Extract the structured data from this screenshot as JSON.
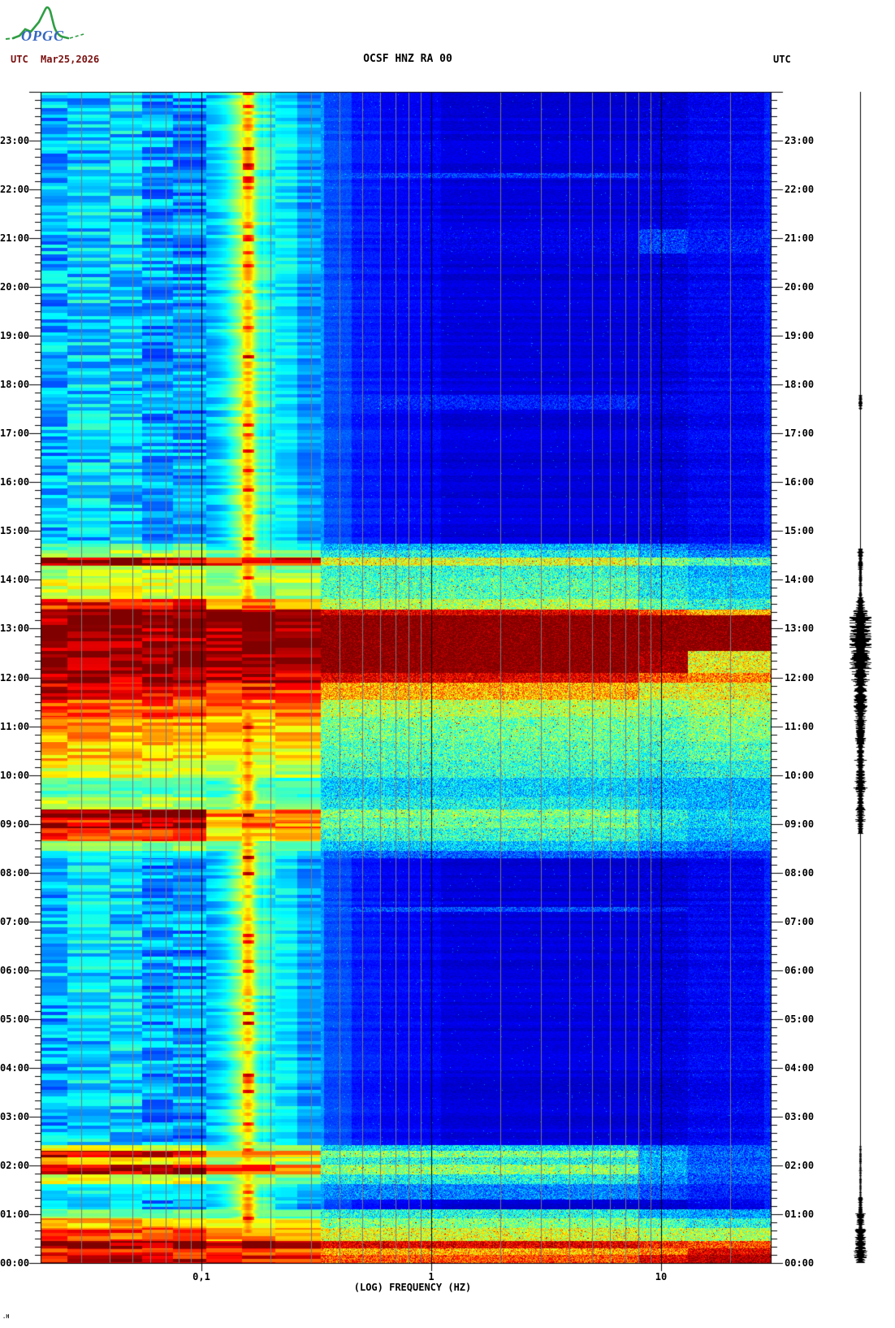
{
  "header": {
    "logo_text": "OPGC",
    "utc_left": "UTC",
    "date": "Mar25,2026",
    "title": "OCSF HNZ RA 00",
    "utc_right": "UTC"
  },
  "footer": {
    "signature": ".H"
  },
  "colors": {
    "header_date": "#7a1010",
    "title": "#000000",
    "grid_minor": "#7a7a7a",
    "grid_major": "#000000",
    "trace": "#000000",
    "logo_green": "#2f9e44",
    "logo_blue": "#3566c0"
  },
  "chart_data": {
    "type": "heatmap",
    "subtype": "seismic-spectrogram",
    "title": "OCSF HNZ RA 00",
    "station": "OCSF",
    "channel": "HNZ RA 00",
    "date": "Mar25,2026",
    "xlabel": "(LOG) FREQUENCY (HZ)",
    "ylabel": "UTC",
    "x_scale": "log",
    "x_min_hz": 0.02,
    "x_max_hz": 30,
    "x_ticks": [
      {
        "hz": 0.1,
        "label": "0,1"
      },
      {
        "hz": 1,
        "label": "1"
      },
      {
        "hz": 10,
        "label": "10"
      }
    ],
    "x_gridlines_minor_hz": [
      0.03,
      0.04,
      0.05,
      0.06,
      0.07,
      0.08,
      0.09,
      0.2,
      0.3,
      0.4,
      0.5,
      0.6,
      0.7,
      0.8,
      0.9,
      2,
      3,
      4,
      5,
      6,
      7,
      8,
      9,
      20,
      30
    ],
    "x_gridlines_major_hz": [
      0.1,
      1,
      10
    ],
    "y_hours_span": 24,
    "y_minor_tick_minutes": 10,
    "hour_labels": [
      "23:00",
      "22:00",
      "21:00",
      "20:00",
      "19:00",
      "18:00",
      "17:00",
      "16:00",
      "15:00",
      "14:00",
      "13:00",
      "12:00",
      "11:00",
      "10:00",
      "09:00",
      "08:00",
      "07:00",
      "06:00",
      "05:00",
      "04:00",
      "03:00",
      "02:00",
      "01:00",
      "00:00"
    ],
    "colormap": "jet",
    "background_level": 0.095,
    "base_profile": [
      {
        "f_lo": 0.02,
        "f_hi": 0.026,
        "v": 0.3
      },
      {
        "f_lo": 0.026,
        "f_hi": 0.055,
        "v": 0.33
      },
      {
        "f_lo": 0.055,
        "f_hi": 0.105,
        "v": 0.28
      },
      {
        "f_lo": 0.105,
        "f_hi": 0.125,
        "v": 0.31
      },
      {
        "f_lo": 0.125,
        "f_hi": 0.185,
        "v": 0.3
      },
      {
        "f_lo": 0.185,
        "f_hi": 0.26,
        "v": 0.36
      },
      {
        "f_lo": 0.26,
        "f_hi": 0.34,
        "v": 0.28
      },
      {
        "f_lo": 0.34,
        "f_hi": 0.45,
        "v": 0.2
      },
      {
        "f_lo": 0.45,
        "f_hi": 0.6,
        "v": 0.15
      },
      {
        "f_lo": 0.6,
        "f_hi": 1.1,
        "v": 0.12
      },
      {
        "f_lo": 1.1,
        "f_hi": 13,
        "v": 0.09
      },
      {
        "f_lo": 13,
        "f_hi": 28,
        "v": 0.115
      },
      {
        "f_lo": 28,
        "f_hi": 30.5,
        "v": 0.16
      }
    ],
    "microseism_band": {
      "center_hz": 0.155,
      "core_hz": 0.16,
      "band_amp": 0.26,
      "core_amp": 0.14,
      "m_by_hour": [
        1.06,
        1.05,
        0.95,
        0.92,
        0.92,
        0.92,
        0.92,
        0.93,
        0.95,
        1.1,
        1.12,
        1.12,
        1.05,
        1.0,
        1.03,
        0.98,
        0.97,
        0.97,
        0.96,
        0.96,
        0.97,
        0.98,
        0.97,
        0.97,
        0.97
      ]
    },
    "events_format": "[hour_start, hour_end, v_below_0.1Hz, v_0.1-0.33Hz, v_0.33-8Hz, v_8-13Hz, v_above_13Hz]",
    "events": [
      [
        22.35,
        22.25,
        0.3,
        0.25,
        0.18,
        0.12,
        0.1
      ],
      [
        21.2,
        20.7,
        0.1,
        0.1,
        0.1,
        0.18,
        0.14
      ],
      [
        17.8,
        17.5,
        0.3,
        0.2,
        0.15,
        0.1,
        0.1
      ],
      [
        14.75,
        14.62,
        0.45,
        0.4,
        0.3,
        0.25,
        0.2
      ],
      [
        14.62,
        14.47,
        0.55,
        0.5,
        0.38,
        0.3,
        0.25
      ],
      [
        14.47,
        14.3,
        0.97,
        0.85,
        0.6,
        0.5,
        0.45
      ],
      [
        14.3,
        14.05,
        0.55,
        0.5,
        0.42,
        0.35,
        0.3
      ],
      [
        14.05,
        13.62,
        0.6,
        0.55,
        0.45,
        0.38,
        0.33
      ],
      [
        13.62,
        13.4,
        0.85,
        0.75,
        0.55,
        0.45,
        0.4
      ],
      [
        13.4,
        13.28,
        1.0,
        1.0,
        0.9,
        0.8,
        0.7
      ],
      [
        13.28,
        12.55,
        1.0,
        1.0,
        1.0,
        1.0,
        1.0
      ],
      [
        12.55,
        12.1,
        1.0,
        1.0,
        1.0,
        0.97,
        0.62
      ],
      [
        12.1,
        11.9,
        0.97,
        0.95,
        0.9,
        0.8,
        0.75
      ],
      [
        11.9,
        11.55,
        0.9,
        0.85,
        0.7,
        0.6,
        0.62
      ],
      [
        11.55,
        11.2,
        0.8,
        0.75,
        0.55,
        0.5,
        0.55
      ],
      [
        11.2,
        10.7,
        0.72,
        0.68,
        0.48,
        0.45,
        0.5
      ],
      [
        10.7,
        10.3,
        0.68,
        0.62,
        0.45,
        0.42,
        0.45
      ],
      [
        10.3,
        9.95,
        0.6,
        0.55,
        0.42,
        0.38,
        0.4
      ],
      [
        9.95,
        9.55,
        0.45,
        0.42,
        0.33,
        0.3,
        0.3
      ],
      [
        9.55,
        9.3,
        0.55,
        0.5,
        0.38,
        0.32,
        0.3
      ],
      [
        9.3,
        9.13,
        1.0,
        0.75,
        0.5,
        0.4,
        0.35
      ],
      [
        9.13,
        9.04,
        0.85,
        0.7,
        0.45,
        0.38,
        0.33
      ],
      [
        9.04,
        8.92,
        0.97,
        0.75,
        0.48,
        0.4,
        0.35
      ],
      [
        8.92,
        8.65,
        0.8,
        0.65,
        0.42,
        0.35,
        0.3
      ],
      [
        8.65,
        8.45,
        0.5,
        0.45,
        0.32,
        0.27,
        0.24
      ],
      [
        8.45,
        8.3,
        0.35,
        0.3,
        0.22,
        0.18,
        0.16
      ],
      [
        7.3,
        7.2,
        0.25,
        0.22,
        0.2,
        0.14,
        0.1
      ],
      [
        2.42,
        2.3,
        0.6,
        0.5,
        0.35,
        0.25,
        0.2
      ],
      [
        2.3,
        2.17,
        0.95,
        0.75,
        0.5,
        0.3,
        0.22
      ],
      [
        2.17,
        2.02,
        0.65,
        0.55,
        0.4,
        0.28,
        0.2
      ],
      [
        2.02,
        1.83,
        0.97,
        0.78,
        0.52,
        0.3,
        0.22
      ],
      [
        1.83,
        1.62,
        0.6,
        0.5,
        0.38,
        0.26,
        0.2
      ],
      [
        1.62,
        1.3,
        0.35,
        0.3,
        0.25,
        0.2,
        0.15
      ],
      [
        1.1,
        0.92,
        0.5,
        0.45,
        0.4,
        0.3,
        0.28
      ],
      [
        0.92,
        0.72,
        0.7,
        0.62,
        0.5,
        0.45,
        0.4
      ],
      [
        0.72,
        0.45,
        0.8,
        0.72,
        0.6,
        0.55,
        0.55
      ],
      [
        0.45,
        0.3,
        1.0,
        0.95,
        0.9,
        0.85,
        0.8
      ],
      [
        0.3,
        0.18,
        0.85,
        0.8,
        0.7,
        0.75,
        0.9
      ],
      [
        0.18,
        0.0,
        0.9,
        0.85,
        0.8,
        0.9,
        0.95
      ]
    ],
    "spectral_lines_hz": [
      0.45,
      0.62,
      0.85,
      1.25,
      2.05,
      3.3,
      5.4,
      8.5
    ],
    "trace": {
      "style": "vertical-seismogram",
      "envelope_format": "[hour_start, hour_end, half_width_px]",
      "envelope": [
        [
          24.0,
          17.8,
          0.5
        ],
        [
          17.8,
          17.5,
          1.6
        ],
        [
          17.5,
          14.65,
          0.5
        ],
        [
          14.65,
          14.2,
          2.2
        ],
        [
          14.2,
          13.65,
          1.3
        ],
        [
          13.65,
          13.4,
          4
        ],
        [
          13.4,
          13.25,
          7
        ],
        [
          13.25,
          12.2,
          11
        ],
        [
          12.2,
          11.85,
          8.5
        ],
        [
          11.85,
          11.3,
          6
        ],
        [
          11.3,
          10.65,
          4.5
        ],
        [
          10.65,
          10.05,
          4
        ],
        [
          10.05,
          9.65,
          4.5
        ],
        [
          9.65,
          9.35,
          3
        ],
        [
          9.35,
          9.05,
          4.5
        ],
        [
          9.05,
          8.8,
          2.5
        ],
        [
          8.8,
          2.4,
          0.5
        ],
        [
          2.4,
          1.35,
          0.8
        ],
        [
          1.35,
          1.05,
          2
        ],
        [
          1.05,
          0.7,
          3.5
        ],
        [
          0.7,
          0.25,
          5
        ],
        [
          0.25,
          0.0,
          6
        ]
      ]
    }
  }
}
